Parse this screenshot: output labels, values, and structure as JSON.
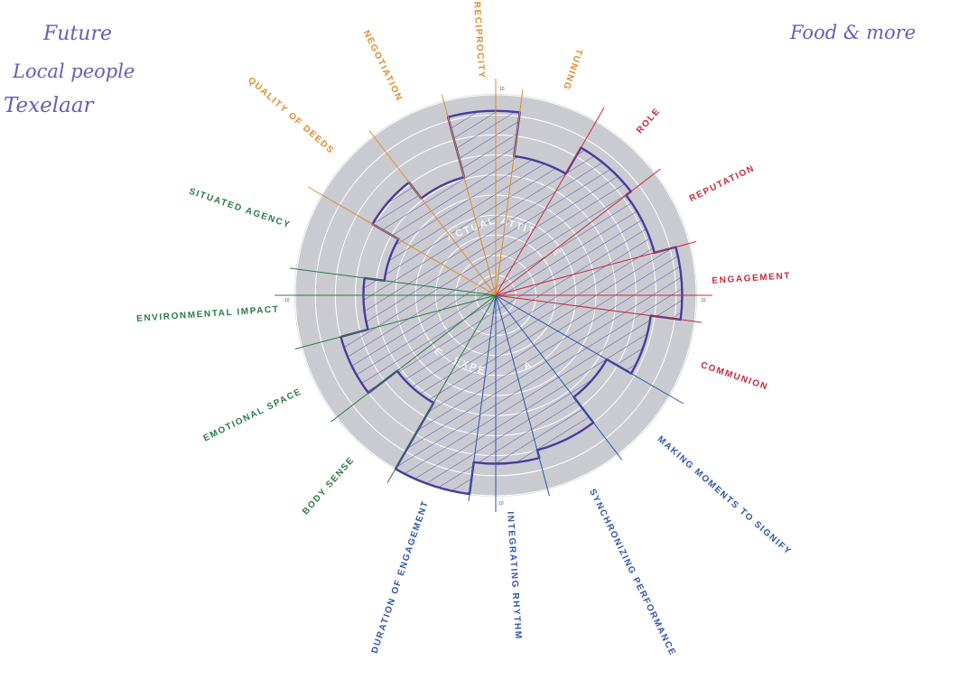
{
  "notes": {
    "top_left": [
      "Future",
      "Local people",
      "Texelaar"
    ],
    "top_right": "Food & more"
  },
  "chart_data": {
    "type": "radar",
    "scale": {
      "min": 0,
      "max": 10,
      "rings": 10,
      "tick_label": "10"
    },
    "inner_labels": [
      "ACTUAL",
      "ATTIT",
      "E",
      "A",
      "EXPE",
      "E"
    ],
    "axes": [
      {
        "label": "ROLE",
        "color": "#c8283c",
        "value": 8.5
      },
      {
        "label": "REPUTATION",
        "color": "#c8283c",
        "value": 8.2
      },
      {
        "label": "ENGAGEMENT",
        "color": "#c8283c",
        "value": 9.3
      },
      {
        "label": "COMMUNION",
        "color": "#c8283c",
        "value": 7.8
      },
      {
        "label": "MAKING MOMENTS TO SIGNIFY",
        "color": "#2e55a8",
        "value": 6.4
      },
      {
        "label": "SYNCHRONIZING PERFORMANCE",
        "color": "#2e55a8",
        "value": 8.0
      },
      {
        "label": "INTEGRATING RHYTHM",
        "color": "#2e55a8",
        "value": 8.4
      },
      {
        "label": "DURATION OF ENGAGEMENT",
        "color": "#2e55a8",
        "value": 10.0
      },
      {
        "label": "BODY SENSE",
        "color": "#2a7a45",
        "value": 6.2
      },
      {
        "label": "EMOTIONAL SPACE",
        "color": "#2a7a45",
        "value": 8.0
      },
      {
        "label": "ENVIRONMENTAL IMPACT",
        "color": "#2a7a45",
        "value": 6.6
      },
      {
        "label": "SITUATED AGENCY",
        "color": "#2a7a45",
        "value": 5.6
      },
      {
        "label": "QUALITY OF DEEDS",
        "color": "#e08a2a",
        "value": 7.1
      },
      {
        "label": "NEGOTIATION",
        "color": "#e08a2a",
        "value": 6.1
      },
      {
        "label": "RECIPROCITY",
        "color": "#e08a2a",
        "value": 9.2
      },
      {
        "label": "TUNING",
        "color": "#e08a2a",
        "value": 7.0
      }
    ],
    "series": [
      {
        "fill": "#6a5bb8"
      }
    ]
  }
}
